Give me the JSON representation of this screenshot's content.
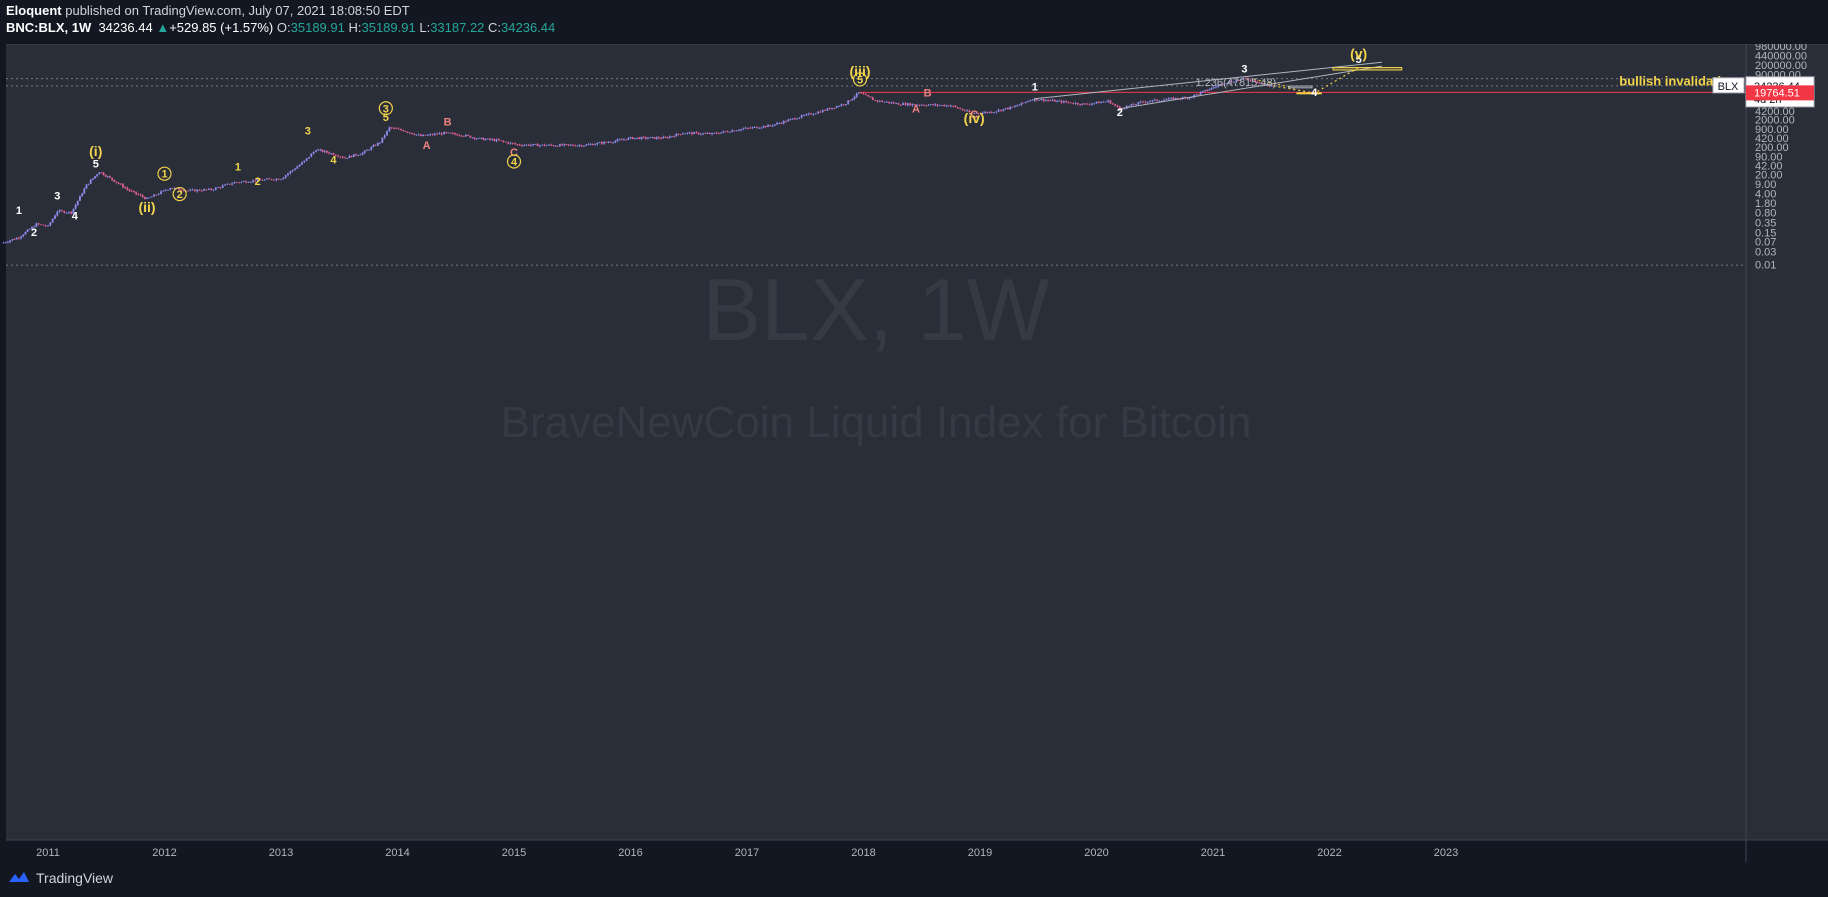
{
  "header": {
    "author": "Eloquent",
    "published": "published on TradingView.com, July 07, 2021 18:08:50 EDT",
    "symbol": "BNC:BLX, 1W",
    "last": "34236.44",
    "change": "+529.85 (+1.57%)",
    "o_label": "O:",
    "o_value": "35189.91",
    "h_label": "H:",
    "h_value": "35189.91",
    "l_label": "L:",
    "l_value": "33187.22",
    "c_label": "C:",
    "c_value": "34236.44"
  },
  "footer": {
    "brand": "TradingView"
  },
  "colors": {
    "background": "#131722",
    "pane": "#2a2e39",
    "yellow": "#f2d44a",
    "salmon": "#f08080",
    "red_line": "#f23645",
    "candle_up": "#8e8ef0",
    "candle_down": "#e8609a"
  },
  "chart_data": {
    "type": "candlestick",
    "scale": "log",
    "symbol": "BLX",
    "watermark_symbol": "BLX, 1W",
    "watermark_desc": "BraveNewCoin Liquid Index for Bitcoin",
    "x_ticks": [
      "2011",
      "2012",
      "2013",
      "2014",
      "2015",
      "2016",
      "2017",
      "2018",
      "2019",
      "2020",
      "2021",
      "2022",
      "2023"
    ],
    "y_ticks": [
      "980000.00",
      "440000.00",
      "200000.00",
      "90000.00",
      "42000.00",
      "20000.00",
      "9000.00",
      "4200.00",
      "2000.00",
      "900.00",
      "420.00",
      "200.00",
      "90.00",
      "42.00",
      "20.00",
      "9.00",
      "4.00",
      "1.80",
      "0.80",
      "0.35",
      "0.15",
      "0.07",
      "0.03",
      "0.01"
    ],
    "series": [
      {
        "x": 2010.6,
        "y": 0.06
      },
      {
        "x": 2010.75,
        "y": 0.1
      },
      {
        "x": 2010.9,
        "y": 0.3
      },
      {
        "x": 2011.0,
        "y": 0.25
      },
      {
        "x": 2011.08,
        "y": 0.9
      },
      {
        "x": 2011.2,
        "y": 0.8
      },
      {
        "x": 2011.33,
        "y": 8
      },
      {
        "x": 2011.44,
        "y": 25
      },
      {
        "x": 2011.55,
        "y": 13
      },
      {
        "x": 2011.7,
        "y": 5
      },
      {
        "x": 2011.85,
        "y": 2.5
      },
      {
        "x": 2011.95,
        "y": 4
      },
      {
        "x": 2012.05,
        "y": 6.5
      },
      {
        "x": 2012.2,
        "y": 5
      },
      {
        "x": 2012.4,
        "y": 5.5
      },
      {
        "x": 2012.6,
        "y": 10
      },
      {
        "x": 2012.8,
        "y": 12
      },
      {
        "x": 2013.0,
        "y": 14
      },
      {
        "x": 2013.2,
        "y": 60
      },
      {
        "x": 2013.3,
        "y": 160
      },
      {
        "x": 2013.45,
        "y": 110
      },
      {
        "x": 2013.55,
        "y": 80
      },
      {
        "x": 2013.7,
        "y": 120
      },
      {
        "x": 2013.85,
        "y": 300
      },
      {
        "x": 2013.93,
        "y": 1000
      },
      {
        "x": 2014.05,
        "y": 800
      },
      {
        "x": 2014.2,
        "y": 500
      },
      {
        "x": 2014.4,
        "y": 640
      },
      {
        "x": 2014.55,
        "y": 550
      },
      {
        "x": 2014.7,
        "y": 400
      },
      {
        "x": 2014.85,
        "y": 350
      },
      {
        "x": 2015.03,
        "y": 240
      },
      {
        "x": 2015.3,
        "y": 230
      },
      {
        "x": 2015.6,
        "y": 230
      },
      {
        "x": 2015.85,
        "y": 320
      },
      {
        "x": 2016.0,
        "y": 420
      },
      {
        "x": 2016.3,
        "y": 430
      },
      {
        "x": 2016.45,
        "y": 650
      },
      {
        "x": 2016.7,
        "y": 600
      },
      {
        "x": 2016.95,
        "y": 900
      },
      {
        "x": 2017.2,
        "y": 1200
      },
      {
        "x": 2017.45,
        "y": 2500
      },
      {
        "x": 2017.65,
        "y": 4200
      },
      {
        "x": 2017.85,
        "y": 8000
      },
      {
        "x": 2017.96,
        "y": 19000
      },
      {
        "x": 2018.1,
        "y": 10000
      },
      {
        "x": 2018.3,
        "y": 7500
      },
      {
        "x": 2018.5,
        "y": 7000
      },
      {
        "x": 2018.75,
        "y": 6500
      },
      {
        "x": 2018.93,
        "y": 3400
      },
      {
        "x": 2019.1,
        "y": 3800
      },
      {
        "x": 2019.3,
        "y": 6000
      },
      {
        "x": 2019.45,
        "y": 11500
      },
      {
        "x": 2019.7,
        "y": 9000
      },
      {
        "x": 2019.9,
        "y": 7200
      },
      {
        "x": 2020.1,
        "y": 9500
      },
      {
        "x": 2020.2,
        "y": 5000
      },
      {
        "x": 2020.4,
        "y": 9000
      },
      {
        "x": 2020.6,
        "y": 11000
      },
      {
        "x": 2020.8,
        "y": 13000
      },
      {
        "x": 2020.95,
        "y": 24000
      },
      {
        "x": 2021.1,
        "y": 45000
      },
      {
        "x": 2021.28,
        "y": 63000
      },
      {
        "x": 2021.38,
        "y": 50000
      },
      {
        "x": 2021.45,
        "y": 36000
      },
      {
        "x": 2021.52,
        "y": 34236
      }
    ],
    "last_price": "34236.44",
    "countdown": "4d 2h",
    "invalidation_price": "19764.51",
    "invalidation_label": "bullish invalidation",
    "fib_label": "1.236(47815.48)",
    "wave_labels": [
      {
        "text": "1",
        "x": 2010.75,
        "y": 0.7,
        "color": "#ffffff"
      },
      {
        "text": "2",
        "x": 2010.88,
        "y": 0.11,
        "color": "#ffffff"
      },
      {
        "text": "3",
        "x": 2011.08,
        "y": 2.4,
        "color": "#ffffff"
      },
      {
        "text": "4",
        "x": 2011.23,
        "y": 0.45,
        "color": "#ffffff"
      },
      {
        "text": "5",
        "x": 2011.41,
        "y": 35,
        "color": "#ffffff"
      },
      {
        "text": "(i)",
        "x": 2011.41,
        "y": 95,
        "color": "#f2d44a"
      },
      {
        "text": "(ii)",
        "x": 2011.85,
        "y": 0.85,
        "color": "#f2d44a"
      },
      {
        "text": "1",
        "x": 2012.0,
        "y": 15,
        "color": "#f2d44a",
        "circled": true
      },
      {
        "text": "2",
        "x": 2012.13,
        "y": 2.7,
        "color": "#f2d44a",
        "circled": true
      },
      {
        "text": "1",
        "x": 2012.63,
        "y": 28,
        "color": "#f2d44a"
      },
      {
        "text": "2",
        "x": 2012.8,
        "y": 8,
        "color": "#f2d44a"
      },
      {
        "text": "3",
        "x": 2013.23,
        "y": 560,
        "color": "#f2d44a"
      },
      {
        "text": "4",
        "x": 2013.45,
        "y": 50,
        "color": "#f2d44a"
      },
      {
        "text": "3",
        "x": 2013.9,
        "y": 3700,
        "color": "#f2d44a",
        "circled": true
      },
      {
        "text": "5",
        "x": 2013.9,
        "y": 1800,
        "color": "#f2d44a"
      },
      {
        "text": "A",
        "x": 2014.25,
        "y": 170,
        "color": "#f08080"
      },
      {
        "text": "B",
        "x": 2014.43,
        "y": 1200,
        "color": "#f08080"
      },
      {
        "text": "C",
        "x": 2015.0,
        "y": 95,
        "color": "#f08080"
      },
      {
        "text": "4",
        "x": 2015.0,
        "y": 42,
        "color": "#f2d44a",
        "circled": true
      },
      {
        "text": "(iii)",
        "x": 2017.97,
        "y": 80000,
        "color": "#f2d44a"
      },
      {
        "text": "5",
        "x": 2017.97,
        "y": 42000,
        "color": "#f2d44a",
        "circled": true
      },
      {
        "text": "B",
        "x": 2018.55,
        "y": 14000,
        "color": "#f08080"
      },
      {
        "text": "A",
        "x": 2018.45,
        "y": 3700,
        "color": "#f08080"
      },
      {
        "text": "C",
        "x": 2018.95,
        "y": 2300,
        "color": "#f08080"
      },
      {
        "text": "(iv)",
        "x": 2018.95,
        "y": 1500,
        "color": "#f2d44a"
      },
      {
        "text": "1",
        "x": 2019.47,
        "y": 23000,
        "color": "#ffffff"
      },
      {
        "text": "2",
        "x": 2020.2,
        "y": 2700,
        "color": "#ffffff"
      },
      {
        "text": "3",
        "x": 2021.27,
        "y": 105000,
        "color": "#ffffff"
      },
      {
        "text": "4",
        "x": 2021.87,
        "y": 14500,
        "color": "#ffffff"
      },
      {
        "text": "5",
        "x": 2022.25,
        "y": 230000,
        "color": "#ffffff"
      },
      {
        "text": "(v)",
        "x": 2022.25,
        "y": 340000,
        "color": "#f2d44a"
      }
    ]
  }
}
